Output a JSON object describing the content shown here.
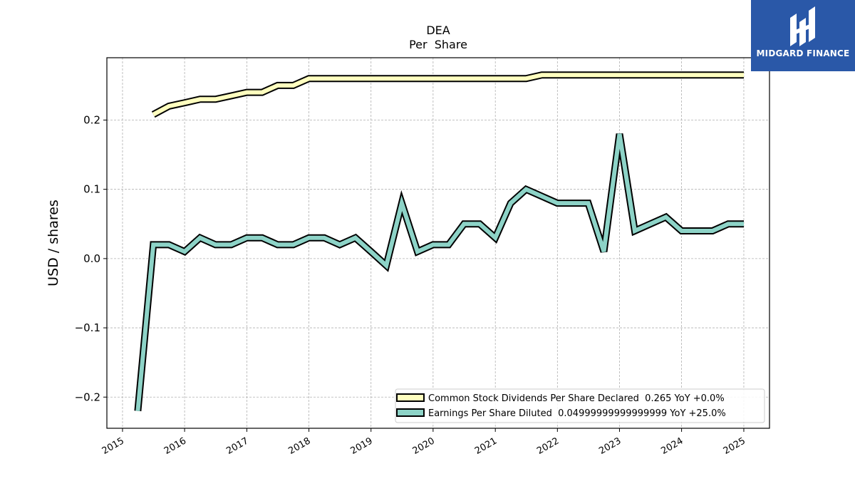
{
  "chart_data": {
    "type": "line",
    "title": "DEA",
    "subtitle": "Per  Share",
    "ylabel": "USD / shares",
    "xlabel": "",
    "xlim": [
      "2014-10-01",
      "2025-06-01"
    ],
    "ylim": [
      -0.245,
      0.29
    ],
    "x_ticks": [
      "2015",
      "2016",
      "2017",
      "2018",
      "2019",
      "2020",
      "2021",
      "2022",
      "2023",
      "2024",
      "2025"
    ],
    "y_ticks": [
      -0.2,
      -0.1,
      0.0,
      0.1,
      0.2
    ],
    "y_tick_labels": [
      "−0.2",
      "−0.1",
      "0.0",
      "0.1",
      "0.2"
    ],
    "grid": true,
    "legend_position": "lower-right",
    "series": [
      {
        "name": "Common Stock Dividends Per Share Declared",
        "legend": "Common Stock Dividends Per Share Declared  0.265 YoY +0.0%",
        "color": "#ffffbf",
        "x": [
          "2015-07-01",
          "2015-10-01",
          "2016-01-01",
          "2016-04-01",
          "2016-07-01",
          "2016-10-01",
          "2017-01-01",
          "2017-04-01",
          "2017-07-01",
          "2017-10-01",
          "2018-01-01",
          "2018-04-01",
          "2018-07-01",
          "2018-10-01",
          "2019-01-01",
          "2019-04-01",
          "2019-07-01",
          "2019-10-01",
          "2020-01-01",
          "2020-04-01",
          "2020-07-01",
          "2020-10-01",
          "2021-01-01",
          "2021-04-01",
          "2021-07-01",
          "2021-10-01",
          "2022-01-01",
          "2022-04-01",
          "2022-07-01",
          "2022-10-01",
          "2023-01-01",
          "2023-04-01",
          "2023-07-01",
          "2023-10-01",
          "2024-01-01",
          "2024-04-01",
          "2024-07-01",
          "2024-10-01",
          "2025-01-01"
        ],
        "values": [
          0.208,
          0.22,
          0.225,
          0.23,
          0.23,
          0.235,
          0.24,
          0.24,
          0.25,
          0.25,
          0.26,
          0.26,
          0.26,
          0.26,
          0.26,
          0.26,
          0.26,
          0.26,
          0.26,
          0.26,
          0.26,
          0.26,
          0.26,
          0.26,
          0.26,
          0.265,
          0.265,
          0.265,
          0.265,
          0.265,
          0.265,
          0.265,
          0.265,
          0.265,
          0.265,
          0.265,
          0.265,
          0.265,
          0.265
        ]
      },
      {
        "name": "Earnings Per Share Diluted",
        "legend": "Earnings Per Share Diluted  0.04999999999999999 YoY +25.0%",
        "color": "#8dd3c7",
        "x": [
          "2015-04-01",
          "2015-07-01",
          "2015-10-01",
          "2016-01-01",
          "2016-04-01",
          "2016-07-01",
          "2016-10-01",
          "2017-01-01",
          "2017-04-01",
          "2017-07-01",
          "2017-10-01",
          "2018-01-01",
          "2018-04-01",
          "2018-07-01",
          "2018-10-01",
          "2019-01-01",
          "2019-04-01",
          "2019-07-01",
          "2019-10-01",
          "2020-01-01",
          "2020-04-01",
          "2020-07-01",
          "2020-10-01",
          "2021-01-01",
          "2021-04-01",
          "2021-07-01",
          "2021-10-01",
          "2022-01-01",
          "2022-04-01",
          "2022-07-01",
          "2022-10-01",
          "2023-01-01",
          "2023-04-01",
          "2023-07-01",
          "2023-10-01",
          "2024-01-01",
          "2024-04-01",
          "2024-07-01",
          "2024-10-01",
          "2025-01-01"
        ],
        "values": [
          -0.22,
          0.02,
          0.02,
          0.01,
          0.03,
          0.02,
          0.02,
          0.03,
          0.03,
          0.02,
          0.02,
          0.03,
          0.03,
          0.02,
          0.03,
          0.01,
          -0.01,
          0.08,
          0.01,
          0.02,
          0.02,
          0.05,
          0.05,
          0.03,
          0.08,
          0.1,
          0.09,
          0.08,
          0.08,
          0.08,
          0.01,
          0.18,
          0.04,
          0.05,
          0.06,
          0.04,
          0.04,
          0.04,
          0.05,
          0.05
        ]
      }
    ]
  },
  "brand": {
    "name": "MIDGARD FINANCE"
  }
}
